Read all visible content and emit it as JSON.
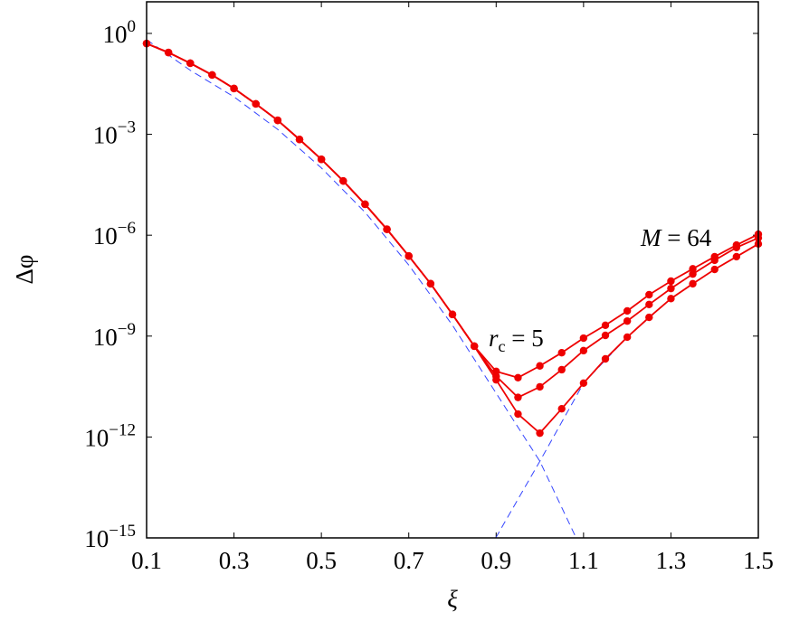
{
  "chart_data": {
    "type": "line",
    "xlabel": "ξ",
    "ylabel": "Δφ",
    "log_y": true,
    "xlim": [
      0.1,
      1.5
    ],
    "ylim": [
      1e-15,
      8.7
    ],
    "xticks": [
      0.1,
      0.3,
      0.5,
      0.7,
      0.9,
      1.1,
      1.3,
      1.5
    ],
    "yticks": [
      {
        "value": 1,
        "label": "10",
        "sup": "0"
      },
      {
        "value": 0.001,
        "label": "10",
        "sup": "−3"
      },
      {
        "value": 1e-06,
        "label": "10",
        "sup": "−6"
      },
      {
        "value": 1e-09,
        "label": "10",
        "sup": "−9"
      },
      {
        "value": 1e-12,
        "label": "10",
        "sup": "−12"
      },
      {
        "value": 1e-15,
        "label": "10",
        "sup": "−15"
      }
    ],
    "annotations": [
      {
        "text": "r",
        "sub": "c",
        "rest": " = 5"
      },
      {
        "text": "M",
        "rest": " = 64"
      }
    ],
    "x": [
      0.1,
      0.15,
      0.2,
      0.25,
      0.3,
      0.35,
      0.4,
      0.45,
      0.5,
      0.55,
      0.6,
      0.65,
      0.7,
      0.75,
      0.8,
      0.85,
      0.9,
      0.95,
      1.0,
      1.05,
      1.1,
      1.15,
      1.2,
      1.25,
      1.3,
      1.35,
      1.4,
      1.45,
      1.5
    ],
    "series": [
      {
        "color": "#ee0000",
        "markers": true,
        "values": [
          0.5,
          0.27,
          0.13,
          0.058,
          0.023,
          0.008,
          0.0026,
          0.0007,
          0.00018,
          4.1e-05,
          8.3e-06,
          1.5e-06,
          2.4e-07,
          3.6e-08,
          4.4e-09,
          5e-10,
          8.9e-11,
          5.8e-11,
          1.3e-10,
          3.2e-10,
          8.7e-10,
          2.1e-09,
          5.6e-09,
          1.7e-08,
          4.3e-08,
          1e-07,
          2.3e-07,
          5.1e-07,
          1.07e-06
        ]
      },
      {
        "color": "#ee0000",
        "markers": true,
        "values": [
          0.5,
          0.27,
          0.13,
          0.058,
          0.023,
          0.008,
          0.0026,
          0.0007,
          0.00018,
          4.1e-05,
          8.3e-06,
          1.5e-06,
          2.4e-07,
          3.6e-08,
          4.4e-09,
          5e-10,
          6.4e-11,
          1.5e-11,
          3.1e-11,
          1e-10,
          3.7e-10,
          1.05e-09,
          2.8e-09,
          8.7e-09,
          2.6e-08,
          7e-08,
          1.8e-07,
          4.3e-07,
          8.3e-07
        ]
      },
      {
        "color": "#ee0000",
        "markers": true,
        "values": [
          0.5,
          0.27,
          0.13,
          0.058,
          0.023,
          0.008,
          0.0026,
          0.0007,
          0.00018,
          4.1e-05,
          8.3e-06,
          1.5e-06,
          2.4e-07,
          3.6e-08,
          4.4e-09,
          5e-10,
          5e-11,
          4.8e-12,
          1.3e-12,
          6.9e-12,
          4e-11,
          2.1e-10,
          9.3e-10,
          3.6e-09,
          1.3e-08,
          3.6e-08,
          9.6e-08,
          2.3e-07,
          5.5e-07
        ]
      },
      {
        "color": "#3344ff",
        "dashed": true,
        "x": [
          0.1,
          0.2,
          0.3,
          0.4,
          0.5,
          0.6,
          0.7,
          0.8,
          0.9,
          1.0,
          1.083
        ],
        "values": [
          0.65,
          0.08,
          0.013,
          0.0014,
          0.0001,
          4.8e-06,
          1.3e-07,
          2.1e-09,
          2e-11,
          1.9e-13,
          1e-15
        ]
      },
      {
        "color": "#3344ff",
        "dashed": true,
        "x": [
          0.899,
          1.0,
          1.1,
          1.2,
          1.3,
          1.4,
          1.5
        ],
        "values": [
          1e-15,
          1.9e-13,
          4e-11,
          9.3e-10,
          1.3e-08,
          9.6e-08,
          5.5e-07
        ]
      }
    ]
  }
}
